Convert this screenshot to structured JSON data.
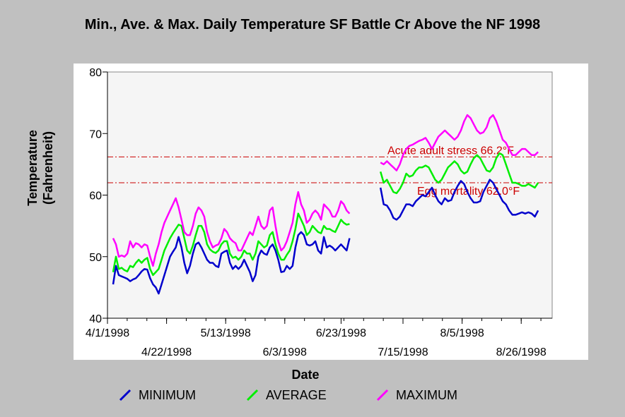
{
  "chart_data": {
    "type": "line",
    "title": "Min., Ave. & Max. Daily Temperature SF Battle Cr Above the NF 1998",
    "xlabel": "Date",
    "ylabel_line1": "Temperature",
    "ylabel_line2": "(Fahrenheit)",
    "ylim": [
      40,
      80
    ],
    "yticks": [
      40,
      50,
      60,
      70,
      80
    ],
    "x_start": "1998-04-01",
    "x_end": "1998-09-06",
    "x_ticks_upper": [
      "4/1/1998",
      "5/13/1998",
      "6/23/1998",
      "8/5/1998"
    ],
    "x_ticks_lower": [
      "4/22/1998",
      "6/3/1998",
      "7/15/1998",
      "8/26/1998"
    ],
    "reference_lines": [
      {
        "label": "Acute adult stress 66.2°F",
        "value": 66.2,
        "color": "#cc0000"
      },
      {
        "label": "Egg mortality 62.0°F",
        "value": 62.0,
        "color": "#cc0000"
      }
    ],
    "segments": [
      {
        "start": "1998-04-03",
        "end": "1998-06-26"
      },
      {
        "start": "1998-07-07",
        "end": "1998-09-01"
      }
    ],
    "series": [
      {
        "name": "MINIMUM",
        "color": "#0000cc",
        "values": [
          [
            45.5,
            48.5,
            47.0,
            46.8,
            46.6,
            46.4,
            46.0,
            46.3,
            46.5,
            47.0,
            47.6,
            48.0,
            47.9,
            46.5,
            45.5,
            45.0,
            44.0,
            45.5,
            47.0,
            48.5,
            50.0,
            50.8,
            51.5,
            53.2,
            51.5,
            49.0,
            47.3,
            48.5,
            50.5,
            52.0,
            52.3,
            51.5,
            50.5,
            49.5,
            49.0,
            49.0,
            48.5,
            48.3,
            50.5,
            50.8,
            51.0,
            49.0,
            48.0,
            48.5,
            48.0,
            48.5,
            49.5,
            48.5,
            47.5,
            46.0,
            47.0,
            50.0,
            51.0,
            50.5,
            50.3,
            51.5,
            52.0,
            51.0,
            49.5,
            47.5,
            47.6,
            48.5,
            48.0,
            48.5,
            51.5,
            53.5,
            54.0,
            53.5,
            52.0,
            51.8,
            52.0,
            52.5,
            51.0,
            50.5,
            53.2,
            51.5,
            51.8,
            51.5,
            51.0,
            51.5,
            52.0,
            51.5,
            51.0,
            53.0
          ],
          [
            61.2,
            58.5,
            58.3,
            57.5,
            56.3,
            56.0,
            56.5,
            57.5,
            58.5,
            58.5,
            58.2,
            59.0,
            59.5,
            60.0,
            59.8,
            60.5,
            61.2,
            60.0,
            59.0,
            58.5,
            59.5,
            59.0,
            59.2,
            60.5,
            61.5,
            62.3,
            61.8,
            60.5,
            59.5,
            58.8,
            58.8,
            59.0,
            60.5,
            61.5,
            62.5,
            62.0,
            61.0,
            60.0,
            59.0,
            58.5,
            57.5,
            56.8,
            56.8,
            57.0,
            57.2,
            57.0,
            57.2,
            57.0,
            56.5,
            57.5
          ]
        ]
      },
      {
        "name": "AVERAGE",
        "color": "#00ee00",
        "values": [
          [
            47.5,
            50.0,
            48.0,
            48.2,
            47.8,
            47.6,
            48.5,
            48.3,
            49.0,
            49.5,
            49.0,
            49.5,
            49.8,
            48.0,
            47.0,
            47.5,
            48.0,
            49.5,
            51.0,
            52.0,
            53.0,
            53.8,
            54.5,
            55.2,
            55.0,
            53.0,
            51.0,
            50.5,
            51.8,
            53.5,
            55.0,
            55.0,
            54.0,
            52.0,
            51.2,
            50.8,
            50.6,
            51.0,
            52.0,
            52.5,
            52.5,
            50.5,
            49.8,
            50.0,
            49.5,
            50.0,
            51.0,
            50.5,
            50.5,
            49.5,
            50.5,
            52.5,
            52.0,
            51.5,
            51.8,
            53.5,
            54.0,
            52.0,
            50.5,
            49.5,
            49.5,
            50.3,
            51.0,
            52.5,
            54.5,
            57.0,
            56.0,
            55.0,
            53.5,
            54.0,
            55.0,
            54.5,
            54.0,
            53.8,
            55.0,
            54.5,
            54.5,
            54.2,
            54.0,
            55.0,
            56.0,
            55.5,
            55.2,
            55.3
          ],
          [
            63.8,
            62.0,
            62.5,
            61.5,
            60.5,
            60.3,
            61.0,
            62.0,
            63.5,
            63.0,
            63.2,
            64.0,
            64.5,
            64.5,
            64.8,
            64.5,
            63.5,
            62.5,
            62.0,
            62.5,
            63.5,
            64.5,
            65.0,
            65.5,
            65.0,
            64.0,
            63.5,
            63.8,
            65.0,
            66.0,
            66.5,
            66.0,
            65.0,
            64.0,
            63.8,
            64.5,
            66.0,
            66.8,
            66.5,
            65.0,
            63.5,
            62.0,
            62.0,
            61.8,
            61.5,
            61.5,
            61.8,
            61.5,
            61.2,
            62.0
          ]
        ]
      },
      {
        "name": "MAXIMUM",
        "color": "#ff00ff",
        "values": [
          [
            53.0,
            52.0,
            50.0,
            50.2,
            50.0,
            50.5,
            52.5,
            51.5,
            52.2,
            52.0,
            51.5,
            52.0,
            51.8,
            50.0,
            48.5,
            50.5,
            52.0,
            54.0,
            55.5,
            56.5,
            57.5,
            58.5,
            59.5,
            58.0,
            56.0,
            54.0,
            53.5,
            53.5,
            55.0,
            57.0,
            58.0,
            57.5,
            56.5,
            54.0,
            52.5,
            51.5,
            51.8,
            52.0,
            53.0,
            54.5,
            54.0,
            53.0,
            52.5,
            52.2,
            51.0,
            51.0,
            52.0,
            53.0,
            54.0,
            53.5,
            55.0,
            56.5,
            55.0,
            54.5,
            55.0,
            57.5,
            58.0,
            55.0,
            52.5,
            51.0,
            51.5,
            52.5,
            54.0,
            55.5,
            58.5,
            60.5,
            58.5,
            57.5,
            55.5,
            56.0,
            57.0,
            57.5,
            57.0,
            56.0,
            58.5,
            58.0,
            57.5,
            56.5,
            56.5,
            57.5,
            59.0,
            58.5,
            57.5,
            57.0
          ],
          [
            65.3,
            65.0,
            65.5,
            65.0,
            64.5,
            64.0,
            65.0,
            66.5,
            67.5,
            68.0,
            68.2,
            68.5,
            68.8,
            69.0,
            69.3,
            68.5,
            67.5,
            68.5,
            69.5,
            70.0,
            70.5,
            70.0,
            69.5,
            69.0,
            69.5,
            70.5,
            72.0,
            73.0,
            72.5,
            71.5,
            70.5,
            70.0,
            70.2,
            71.0,
            72.5,
            73.0,
            72.0,
            70.5,
            69.0,
            68.5,
            67.5,
            66.5,
            66.5,
            67.0,
            67.5,
            67.5,
            67.0,
            66.5,
            66.5,
            67.0
          ]
        ]
      }
    ]
  }
}
